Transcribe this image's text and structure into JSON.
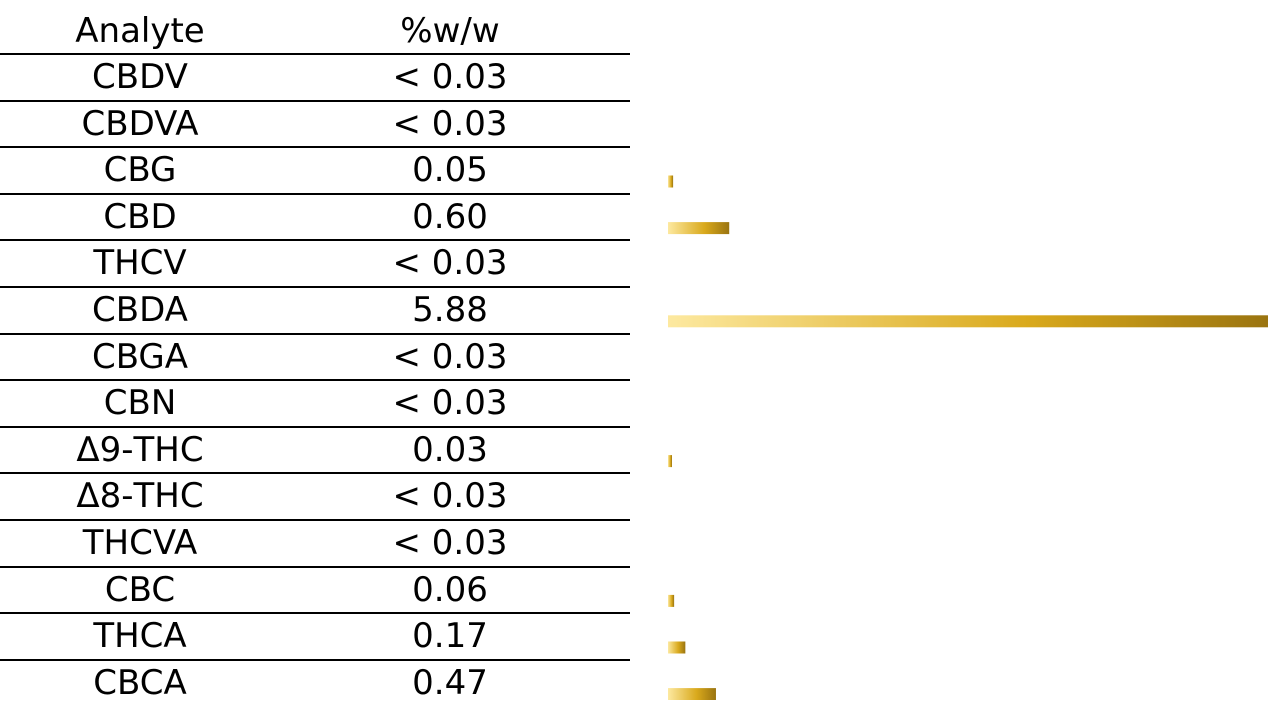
{
  "table": {
    "headers": [
      "Analyte",
      "%w/w"
    ],
    "rows": [
      {
        "analyte": "CBDV",
        "value": "< 0.03"
      },
      {
        "analyte": "CBDVA",
        "value": "< 0.03"
      },
      {
        "analyte": "CBG",
        "value": "0.05"
      },
      {
        "analyte": "CBD",
        "value": "0.60"
      },
      {
        "analyte": "THCV",
        "value": "< 0.03"
      },
      {
        "analyte": "CBDA",
        "value": "5.88"
      },
      {
        "analyte": "CBGA",
        "value": "< 0.03"
      },
      {
        "analyte": "CBN",
        "value": "< 0.03"
      },
      {
        "analyte": "Δ9-THC",
        "value": "0.03"
      },
      {
        "analyte": "Δ8-THC",
        "value": "< 0.03"
      },
      {
        "analyte": "THCVA",
        "value": "< 0.03"
      },
      {
        "analyte": "CBC",
        "value": "0.06"
      },
      {
        "analyte": "THCA",
        "value": "0.17"
      },
      {
        "analyte": "CBCA",
        "value": "0.47"
      }
    ]
  },
  "chart_data": {
    "type": "bar",
    "orientation": "horizontal",
    "categories": [
      "CBDV",
      "CBDVA",
      "CBG",
      "CBD",
      "THCV",
      "CBDA",
      "CBGA",
      "CBN",
      "Δ9-THC",
      "Δ8-THC",
      "THCVA",
      "CBC",
      "THCA",
      "CBCA"
    ],
    "values": [
      0,
      0,
      0.05,
      0.6,
      0,
      5.88,
      0,
      0,
      0.03,
      0,
      0,
      0.06,
      0.17,
      0.47
    ],
    "xlim": [
      0,
      5.88
    ],
    "grid": false,
    "legend": "none",
    "colors": {
      "bar_light": "#fde9a0",
      "bar_mid": "#d9a91c",
      "bar_dark": "#9a7410"
    }
  }
}
